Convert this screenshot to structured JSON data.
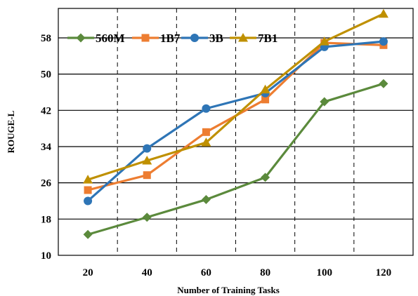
{
  "chart_data": {
    "type": "line",
    "title": "",
    "xlabel": "Number of Training Tasks",
    "ylabel": "ROUGE-L",
    "x": [
      20,
      40,
      60,
      80,
      100,
      120
    ],
    "x_tick_labels": [
      "20",
      "40",
      "60",
      "80",
      "100",
      "120"
    ],
    "y_tick_labels": [
      "10",
      "18",
      "26",
      "34",
      "42",
      "50",
      "58"
    ],
    "y_ticks": [
      10,
      18,
      26,
      34,
      42,
      50,
      58
    ],
    "xlim": [
      10,
      130
    ],
    "ylim": [
      10,
      64.5
    ],
    "grid": "vertical dashed",
    "legend_position": "top-left",
    "series": [
      {
        "name": "560M",
        "color": "#5b8a3c",
        "marker": "diamond",
        "values": [
          14.6,
          18.4,
          22.3,
          27.2,
          43.9,
          47.9
        ]
      },
      {
        "name": "1B7",
        "color": "#ed7d31",
        "marker": "square",
        "values": [
          24.4,
          27.7,
          37.2,
          44.4,
          56.9,
          56.4
        ]
      },
      {
        "name": "3B",
        "color": "#2e75b6",
        "marker": "circle",
        "values": [
          22.0,
          33.6,
          42.4,
          45.8,
          56.0,
          57.2
        ]
      },
      {
        "name": "7B1",
        "color": "#bf9000",
        "marker": "triangle",
        "values": [
          26.7,
          30.9,
          34.9,
          46.6,
          57.2,
          63.3
        ]
      }
    ]
  }
}
